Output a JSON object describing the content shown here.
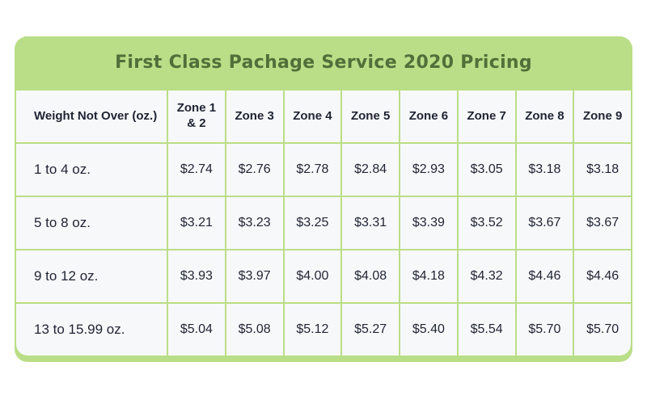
{
  "chart_data": {
    "type": "table",
    "title": "First Class Pachage Service 2020 Pricing",
    "columns": [
      "Weight Not Over (oz.)",
      "Zone 1 & 2",
      "Zone 3",
      "Zone 4",
      "Zone 5",
      "Zone 6",
      "Zone 7",
      "Zone 8",
      "Zone 9"
    ],
    "rows": [
      [
        "1 to 4 oz.",
        "$2.74",
        "$2.76",
        "$2.78",
        "$2.84",
        "$2.93",
        "$3.05",
        "$3.18",
        "$3.18"
      ],
      [
        "5 to 8 oz.",
        "$3.21",
        "$3.23",
        "$3.25",
        "$3.31",
        "$3.39",
        "$3.52",
        "$3.67",
        "$3.67"
      ],
      [
        "9 to 12 oz.",
        "$3.93",
        "$3.97",
        "$4.00",
        "$4.08",
        "$4.18",
        "$4.32",
        "$4.46",
        "$4.46"
      ],
      [
        "13 to 15.99 oz.",
        "$5.04",
        "$5.08",
        "$5.12",
        "$5.27",
        "$5.40",
        "$5.54",
        "$5.70",
        "$5.70"
      ]
    ],
    "layout": {
      "header_row": true,
      "grid": true,
      "currency": "USD"
    }
  },
  "colors": {
    "banner_green": "#bade87",
    "grid_green": "#bade87",
    "title_green": "#50703a",
    "cell_background": "#f7f8fa",
    "text_dark": "#1f2433"
  }
}
